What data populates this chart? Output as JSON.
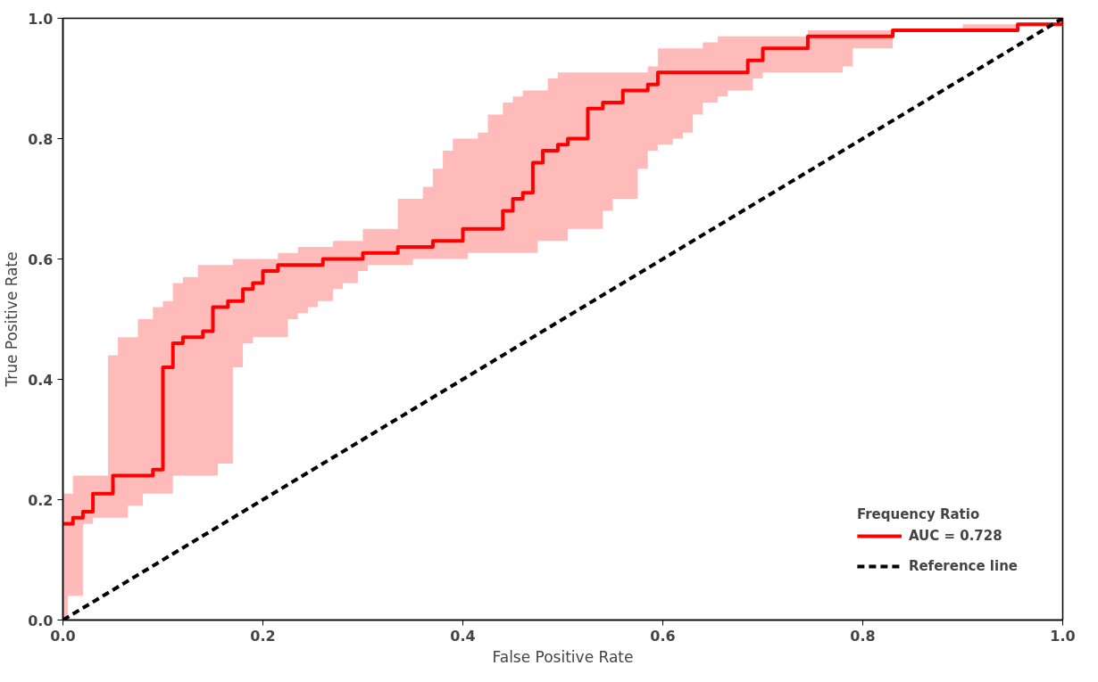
{
  "chart_data": {
    "type": "step",
    "xlabel": "False Positive Rate",
    "ylabel": "True Positive Rate",
    "legend_title": "Frequency Ratio",
    "xlim": [
      0,
      1
    ],
    "ylim": [
      0,
      1
    ],
    "xticks": [
      {
        "value": 0,
        "label": "0.0"
      },
      0.2,
      0.4,
      0.6,
      0.8,
      {
        "value": 1,
        "label": "1.0"
      }
    ],
    "yticks": [
      {
        "value": 0,
        "label": "0.0"
      },
      0.2,
      0.4,
      0.6,
      0.8,
      {
        "value": 1,
        "label": "1.0"
      }
    ],
    "grid": false,
    "legend": "bottom right",
    "marker": "none",
    "series": [
      {
        "name": "AUC = 0.728",
        "color": "#ff0000",
        "type": "step",
        "line_style": "solid",
        "x": [
          0,
          0.005,
          0.01,
          0.02,
          0.03,
          0.045,
          0.05,
          0.055,
          0.065,
          0.075,
          0.08,
          0.09,
          0.1,
          0.11,
          0.12,
          0.135,
          0.14,
          0.15,
          0.155,
          0.165,
          0.17,
          0.18,
          0.19,
          0.2,
          0.215,
          0.225,
          0.235,
          0.245,
          0.255,
          0.26,
          0.27,
          0.28,
          0.295,
          0.3,
          0.305,
          0.335,
          0.35,
          0.36,
          0.37,
          0.38,
          0.39,
          0.4,
          0.405,
          0.415,
          0.425,
          0.44,
          0.45,
          0.46,
          0.47,
          0.475,
          0.48,
          0.485,
          0.495,
          0.505,
          0.525,
          0.54,
          0.55,
          0.56,
          0.575,
          0.585,
          0.595,
          0.61,
          0.62,
          0.63,
          0.64,
          0.655,
          0.665,
          0.685,
          0.69,
          0.7,
          0.745,
          0.78,
          0.79,
          0.83,
          0.9,
          0.955,
          1.0
        ],
        "values": [
          0.16,
          0.16,
          0.17,
          0.18,
          0.21,
          0.21,
          0.24,
          0.24,
          0.24,
          0.24,
          0.24,
          0.25,
          0.42,
          0.46,
          0.47,
          0.47,
          0.48,
          0.52,
          0.52,
          0.53,
          0.53,
          0.55,
          0.56,
          0.58,
          0.59,
          0.59,
          0.59,
          0.59,
          0.59,
          0.6,
          0.6,
          0.6,
          0.6,
          0.61,
          0.61,
          0.62,
          0.62,
          0.62,
          0.63,
          0.63,
          0.63,
          0.65,
          0.65,
          0.65,
          0.65,
          0.68,
          0.7,
          0.71,
          0.76,
          0.76,
          0.78,
          0.78,
          0.79,
          0.8,
          0.85,
          0.86,
          0.86,
          0.88,
          0.88,
          0.89,
          0.91,
          0.91,
          0.91,
          0.91,
          0.91,
          0.91,
          0.91,
          0.93,
          0.93,
          0.95,
          0.97,
          0.97,
          0.97,
          0.98,
          0.98,
          0.99,
          1.0
        ],
        "upper": [
          0.21,
          0.21,
          0.24,
          0.24,
          0.24,
          0.44,
          0.44,
          0.47,
          0.47,
          0.5,
          0.5,
          0.52,
          0.53,
          0.56,
          0.57,
          0.59,
          0.59,
          0.59,
          0.59,
          0.59,
          0.6,
          0.6,
          0.6,
          0.6,
          0.61,
          0.61,
          0.62,
          0.62,
          0.62,
          0.62,
          0.63,
          0.63,
          0.63,
          0.65,
          0.65,
          0.7,
          0.7,
          0.72,
          0.75,
          0.78,
          0.8,
          0.8,
          0.8,
          0.81,
          0.84,
          0.86,
          0.87,
          0.88,
          0.88,
          0.88,
          0.88,
          0.9,
          0.91,
          0.91,
          0.91,
          0.91,
          0.91,
          0.91,
          0.91,
          0.92,
          0.95,
          0.95,
          0.95,
          0.95,
          0.96,
          0.97,
          0.97,
          0.97,
          0.97,
          0.97,
          0.98,
          0.98,
          0.98,
          0.98,
          0.99,
          0.99,
          1.0
        ],
        "lower": [
          0.0,
          0.04,
          0.04,
          0.16,
          0.17,
          0.17,
          0.17,
          0.17,
          0.19,
          0.19,
          0.21,
          0.21,
          0.21,
          0.24,
          0.24,
          0.24,
          0.24,
          0.24,
          0.26,
          0.26,
          0.42,
          0.46,
          0.47,
          0.47,
          0.47,
          0.5,
          0.51,
          0.52,
          0.53,
          0.53,
          0.55,
          0.56,
          0.58,
          0.58,
          0.59,
          0.59,
          0.6,
          0.6,
          0.6,
          0.6,
          0.6,
          0.6,
          0.61,
          0.61,
          0.61,
          0.61,
          0.61,
          0.61,
          0.61,
          0.63,
          0.63,
          0.63,
          0.63,
          0.65,
          0.65,
          0.68,
          0.7,
          0.7,
          0.75,
          0.78,
          0.79,
          0.8,
          0.81,
          0.84,
          0.86,
          0.87,
          0.88,
          0.88,
          0.9,
          0.91,
          0.91,
          0.92,
          0.95,
          0.98,
          0.98,
          0.99,
          1.0
        ]
      },
      {
        "name": "Reference line",
        "color": "#000000",
        "type": "line",
        "line_style": "dashed",
        "x": [
          0,
          1
        ],
        "values": [
          0,
          1
        ]
      }
    ]
  }
}
